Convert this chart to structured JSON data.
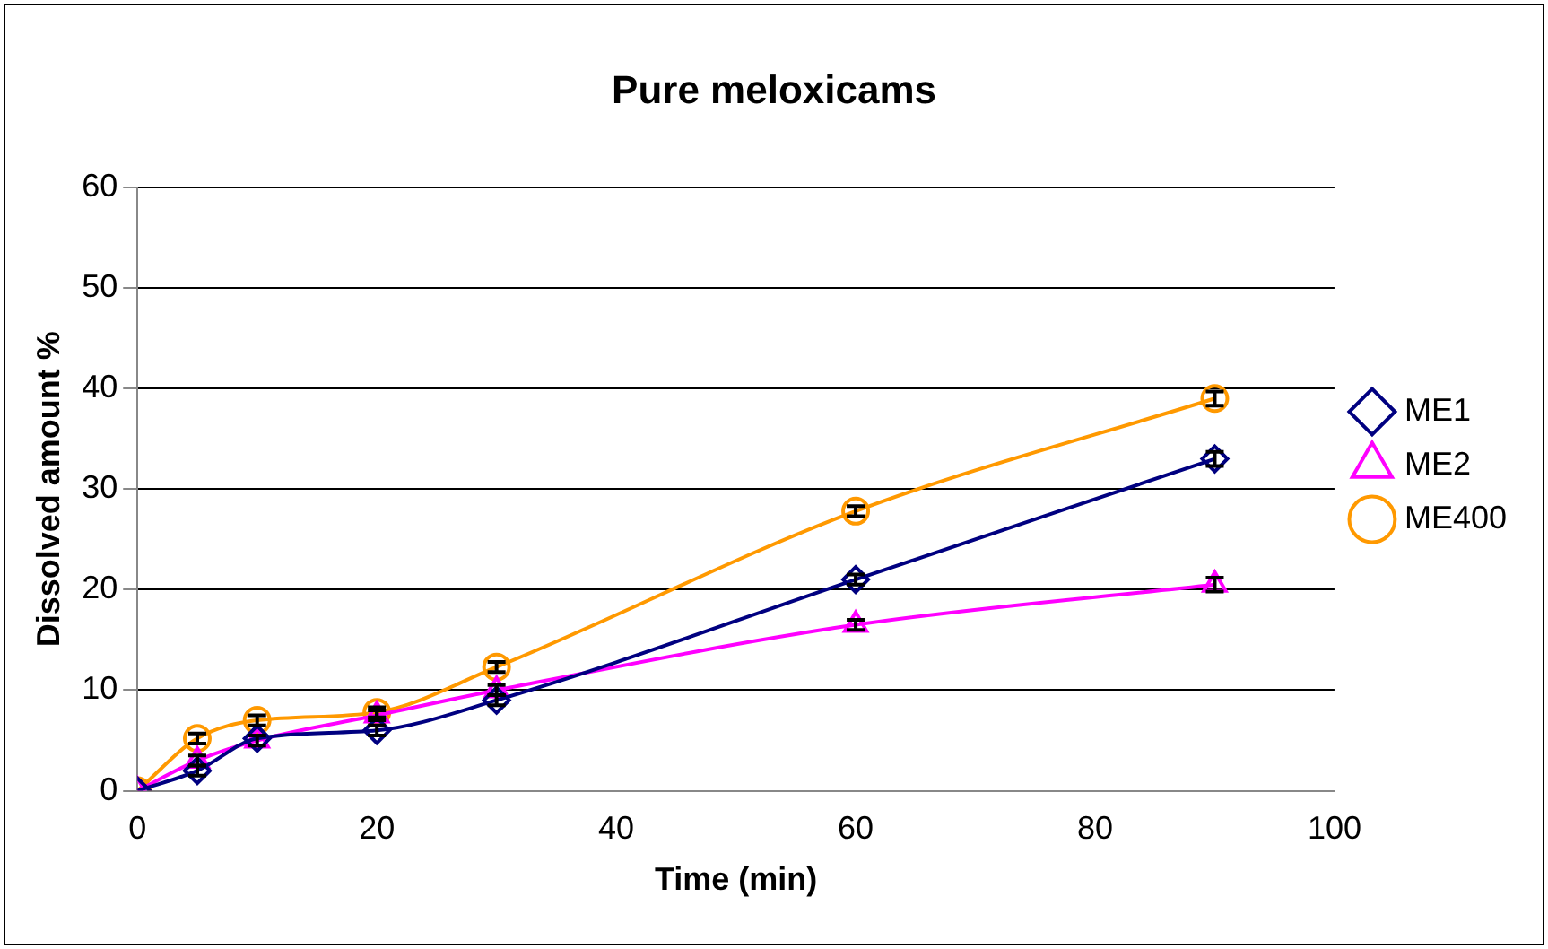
{
  "chart_data": {
    "type": "line",
    "title": "Pure meloxicams",
    "xlabel": "Time (min)",
    "ylabel": "Dissolved amount %",
    "x": [
      0,
      5,
      10,
      20,
      30,
      60,
      90
    ],
    "series": [
      {
        "name": "ME1",
        "color": "#000080",
        "marker": "diamond",
        "values": [
          0,
          2,
          5.2,
          6,
          9,
          21,
          33
        ],
        "errors": [
          null,
          0.5,
          null,
          0.5,
          0.5,
          0.5,
          0.7
        ]
      },
      {
        "name": "ME2",
        "color": "#ff00ff",
        "marker": "triangle",
        "values": [
          0,
          3,
          5,
          7.5,
          10,
          16.5,
          20.5
        ],
        "errors": [
          null,
          0.5,
          0.5,
          0.5,
          0.5,
          0.5,
          0.7
        ]
      },
      {
        "name": "ME400",
        "color": "#ff9900",
        "marker": "circle",
        "values": [
          0,
          5.2,
          7,
          7.8,
          12.3,
          27.8,
          39
        ],
        "errors": [
          null,
          0.5,
          0.5,
          0.5,
          0.5,
          0.5,
          0.7
        ]
      }
    ],
    "xlim": [
      0,
      100
    ],
    "xticks": [
      0,
      20,
      40,
      60,
      80,
      100
    ],
    "ylim": [
      0,
      60
    ],
    "yticks": [
      0,
      10,
      20,
      30,
      40,
      50,
      60
    ],
    "grid": "y",
    "legend": "right",
    "line_style": "solid"
  }
}
